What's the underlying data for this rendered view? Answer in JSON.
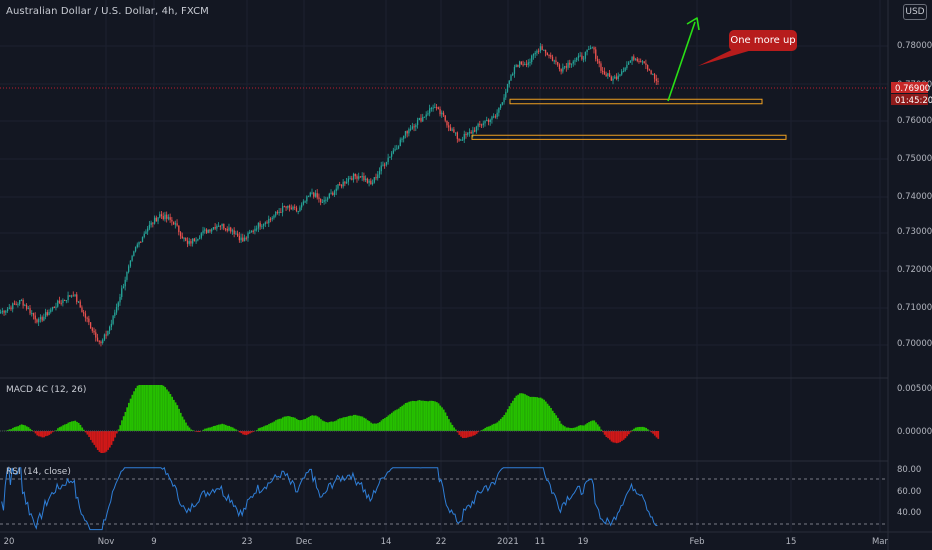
{
  "header": {
    "symbol": "Australian Dollar / U.S. Dollar, 4h, FXCM",
    "currency_button": "USD"
  },
  "colors": {
    "background": "#131722",
    "up_candle": "#26a69a",
    "down_candle": "#ef5350",
    "macd_positive": "#26c000",
    "macd_negative": "#d01818",
    "rsi_line": "#2f7fd8",
    "annotation": "#b71c1c",
    "zone_border": "#f0a020",
    "arrow": "#29e016",
    "price_line": "#b81c30"
  },
  "price_axis": {
    "ticks": [
      "0.78000",
      "0.77000",
      "0.76000",
      "0.75000",
      "0.74000",
      "0.73000",
      "0.72000",
      "0.71000",
      "0.70000"
    ],
    "current_price": "0.76900",
    "countdown": "01:45:20"
  },
  "time_axis": {
    "labels": [
      "20",
      "Nov",
      "9",
      "23",
      "Dec",
      "14",
      "22",
      "2021",
      "11",
      "19",
      "Feb",
      "15",
      "Mar"
    ]
  },
  "annotation": {
    "text": "One more up"
  },
  "indicators": {
    "macd": {
      "label": "MACD 4C (12, 26)",
      "ticks": [
        "0.00500",
        "0.00000"
      ]
    },
    "rsi": {
      "label": "RSI (14, close)",
      "ticks": [
        "80.00",
        "60.00",
        "40.00"
      ],
      "levels": [
        70,
        30
      ]
    }
  },
  "chart_data": {
    "type": "candlestick",
    "title": "Australian Dollar / U.S. Dollar, 4h, FXCM",
    "y_range": [
      0.6965,
      0.7835
    ],
    "anchors": [
      [
        0,
        0.709
      ],
      [
        12,
        0.712
      ],
      [
        22,
        0.7065
      ],
      [
        32,
        0.711
      ],
      [
        42,
        0.714
      ],
      [
        48,
        0.7085
      ],
      [
        58,
        0.7005
      ],
      [
        64,
        0.706
      ],
      [
        72,
        0.718
      ],
      [
        78,
        0.726
      ],
      [
        84,
        0.731
      ],
      [
        92,
        0.735
      ],
      [
        100,
        0.733
      ],
      [
        108,
        0.727
      ],
      [
        116,
        0.73
      ],
      [
        126,
        0.7325
      ],
      [
        134,
        0.731
      ],
      [
        140,
        0.728
      ],
      [
        148,
        0.732
      ],
      [
        156,
        0.734
      ],
      [
        164,
        0.737
      ],
      [
        172,
        0.736
      ],
      [
        180,
        0.741
      ],
      [
        186,
        0.738
      ],
      [
        194,
        0.742
      ],
      [
        202,
        0.745
      ],
      [
        208,
        0.7455
      ],
      [
        214,
        0.743
      ],
      [
        222,
        0.749
      ],
      [
        230,
        0.754
      ],
      [
        236,
        0.758
      ],
      [
        244,
        0.761
      ],
      [
        250,
        0.764
      ],
      [
        256,
        0.761
      ],
      [
        260,
        0.758
      ],
      [
        265,
        0.755
      ],
      [
        272,
        0.757
      ],
      [
        280,
        0.76
      ],
      [
        286,
        0.761
      ],
      [
        292,
        0.768
      ],
      [
        298,
        0.775
      ],
      [
        306,
        0.776
      ],
      [
        312,
        0.78
      ],
      [
        318,
        0.777
      ],
      [
        324,
        0.774
      ],
      [
        330,
        0.776
      ],
      [
        336,
        0.777
      ],
      [
        342,
        0.7795
      ],
      [
        348,
        0.773
      ],
      [
        354,
        0.771
      ],
      [
        360,
        0.774
      ],
      [
        366,
        0.777
      ],
      [
        372,
        0.776
      ],
      [
        377,
        0.772
      ],
      [
        380,
        0.77
      ]
    ],
    "zones": [
      {
        "low": 0.7646,
        "high": 0.7658
      },
      {
        "low": 0.7551,
        "high": 0.7562
      }
    ],
    "macd_ticks": [
      0.005,
      0.0
    ],
    "rsi_ticks": [
      80,
      60,
      40
    ]
  }
}
